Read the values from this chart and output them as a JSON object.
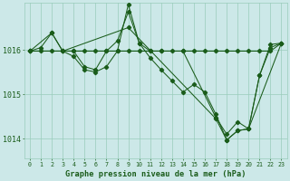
{
  "bg_color": "#cce8e8",
  "grid_color": "#99ccbb",
  "line_color": "#1a5c1a",
  "marker_color": "#1a5c1a",
  "title": "Graphe pression niveau de la mer (hPa)",
  "yticks": [
    1014,
    1015,
    1016
  ],
  "ylim": [
    1013.55,
    1017.05
  ],
  "xlim": [
    -0.5,
    23.5
  ],
  "series1": [
    [
      0,
      1015.97
    ],
    [
      1,
      1016.05
    ],
    [
      2,
      1016.38
    ],
    [
      3,
      1015.97
    ],
    [
      4,
      1015.97
    ],
    [
      5,
      1015.62
    ],
    [
      6,
      1015.55
    ],
    [
      7,
      1015.97
    ],
    [
      8,
      1016.2
    ],
    [
      9,
      1016.85
    ],
    [
      10,
      1016.15
    ],
    [
      11,
      1015.82
    ],
    [
      12,
      1015.55
    ],
    [
      13,
      1015.3
    ],
    [
      14,
      1015.05
    ],
    [
      15,
      1015.22
    ],
    [
      16,
      1015.05
    ],
    [
      17,
      1014.55
    ],
    [
      18,
      1013.97
    ],
    [
      19,
      1014.18
    ],
    [
      20,
      1014.22
    ],
    [
      21,
      1015.42
    ],
    [
      22,
      1016.12
    ],
    [
      23,
      1016.15
    ]
  ],
  "series2": [
    [
      0,
      1015.97
    ],
    [
      1,
      1015.97
    ],
    [
      2,
      1015.97
    ],
    [
      3,
      1015.97
    ],
    [
      4,
      1015.97
    ],
    [
      5,
      1015.97
    ],
    [
      6,
      1015.97
    ],
    [
      7,
      1015.97
    ],
    [
      8,
      1015.97
    ],
    [
      9,
      1015.97
    ],
    [
      10,
      1015.97
    ],
    [
      11,
      1015.97
    ],
    [
      12,
      1015.97
    ],
    [
      13,
      1015.97
    ],
    [
      14,
      1015.97
    ],
    [
      15,
      1015.97
    ],
    [
      16,
      1015.97
    ],
    [
      17,
      1015.97
    ],
    [
      18,
      1015.97
    ],
    [
      19,
      1015.97
    ],
    [
      20,
      1015.97
    ],
    [
      21,
      1015.97
    ],
    [
      22,
      1015.97
    ],
    [
      23,
      1016.15
    ]
  ],
  "series3": [
    [
      0,
      1015.97
    ],
    [
      2,
      1016.38
    ],
    [
      3,
      1015.97
    ],
    [
      4,
      1015.85
    ],
    [
      5,
      1015.55
    ],
    [
      6,
      1015.5
    ],
    [
      7,
      1015.62
    ],
    [
      8,
      1015.97
    ],
    [
      9,
      1017.02
    ],
    [
      10,
      1016.15
    ],
    [
      11,
      1015.97
    ],
    [
      12,
      1015.97
    ],
    [
      14,
      1015.97
    ],
    [
      17,
      1014.48
    ],
    [
      18,
      1014.1
    ],
    [
      19,
      1014.38
    ],
    [
      20,
      1014.22
    ],
    [
      21,
      1015.42
    ],
    [
      22,
      1016.05
    ],
    [
      23,
      1016.15
    ]
  ],
  "series4": [
    [
      0,
      1015.97
    ],
    [
      3,
      1015.97
    ],
    [
      9,
      1016.5
    ],
    [
      17,
      1014.45
    ],
    [
      18,
      1013.97
    ],
    [
      19,
      1014.18
    ],
    [
      20,
      1014.22
    ],
    [
      23,
      1016.15
    ]
  ]
}
